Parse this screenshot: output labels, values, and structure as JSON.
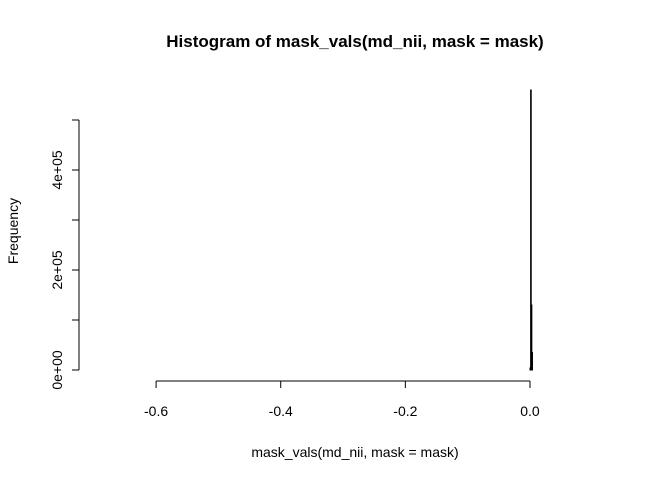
{
  "chart_data": {
    "type": "bar",
    "title": "Histogram of mask_vals(md_nii, mask = mask)",
    "xlabel": "mask_vals(md_nii, mask = mask)",
    "ylabel": "Frequency",
    "xlim": [
      -0.69,
      0.13
    ],
    "ylim": [
      0,
      560000
    ],
    "x_ticks": [
      -0.6,
      -0.4,
      -0.2,
      0.0
    ],
    "x_tick_labels": [
      "-0.6",
      "-0.4",
      "-0.2",
      "0.0"
    ],
    "y_ticks": [
      0,
      100000,
      200000,
      300000,
      400000,
      500000
    ],
    "y_tick_labels": [
      "0e+00",
      "",
      "2e+05",
      "",
      "4e+05",
      ""
    ],
    "bins": [
      {
        "x0": -0.69,
        "x1": 0.0,
        "value": 0
      },
      {
        "x0": 0.0,
        "x1": 0.001,
        "value": 4000
      },
      {
        "x0": 0.001,
        "x1": 0.002,
        "value": 560000
      },
      {
        "x0": 0.002,
        "x1": 0.003,
        "value": 130000
      },
      {
        "x0": 0.003,
        "x1": 0.004,
        "value": 35000
      },
      {
        "x0": 0.004,
        "x1": 0.13,
        "value": 0
      }
    ],
    "grid": false,
    "legend": "none"
  }
}
